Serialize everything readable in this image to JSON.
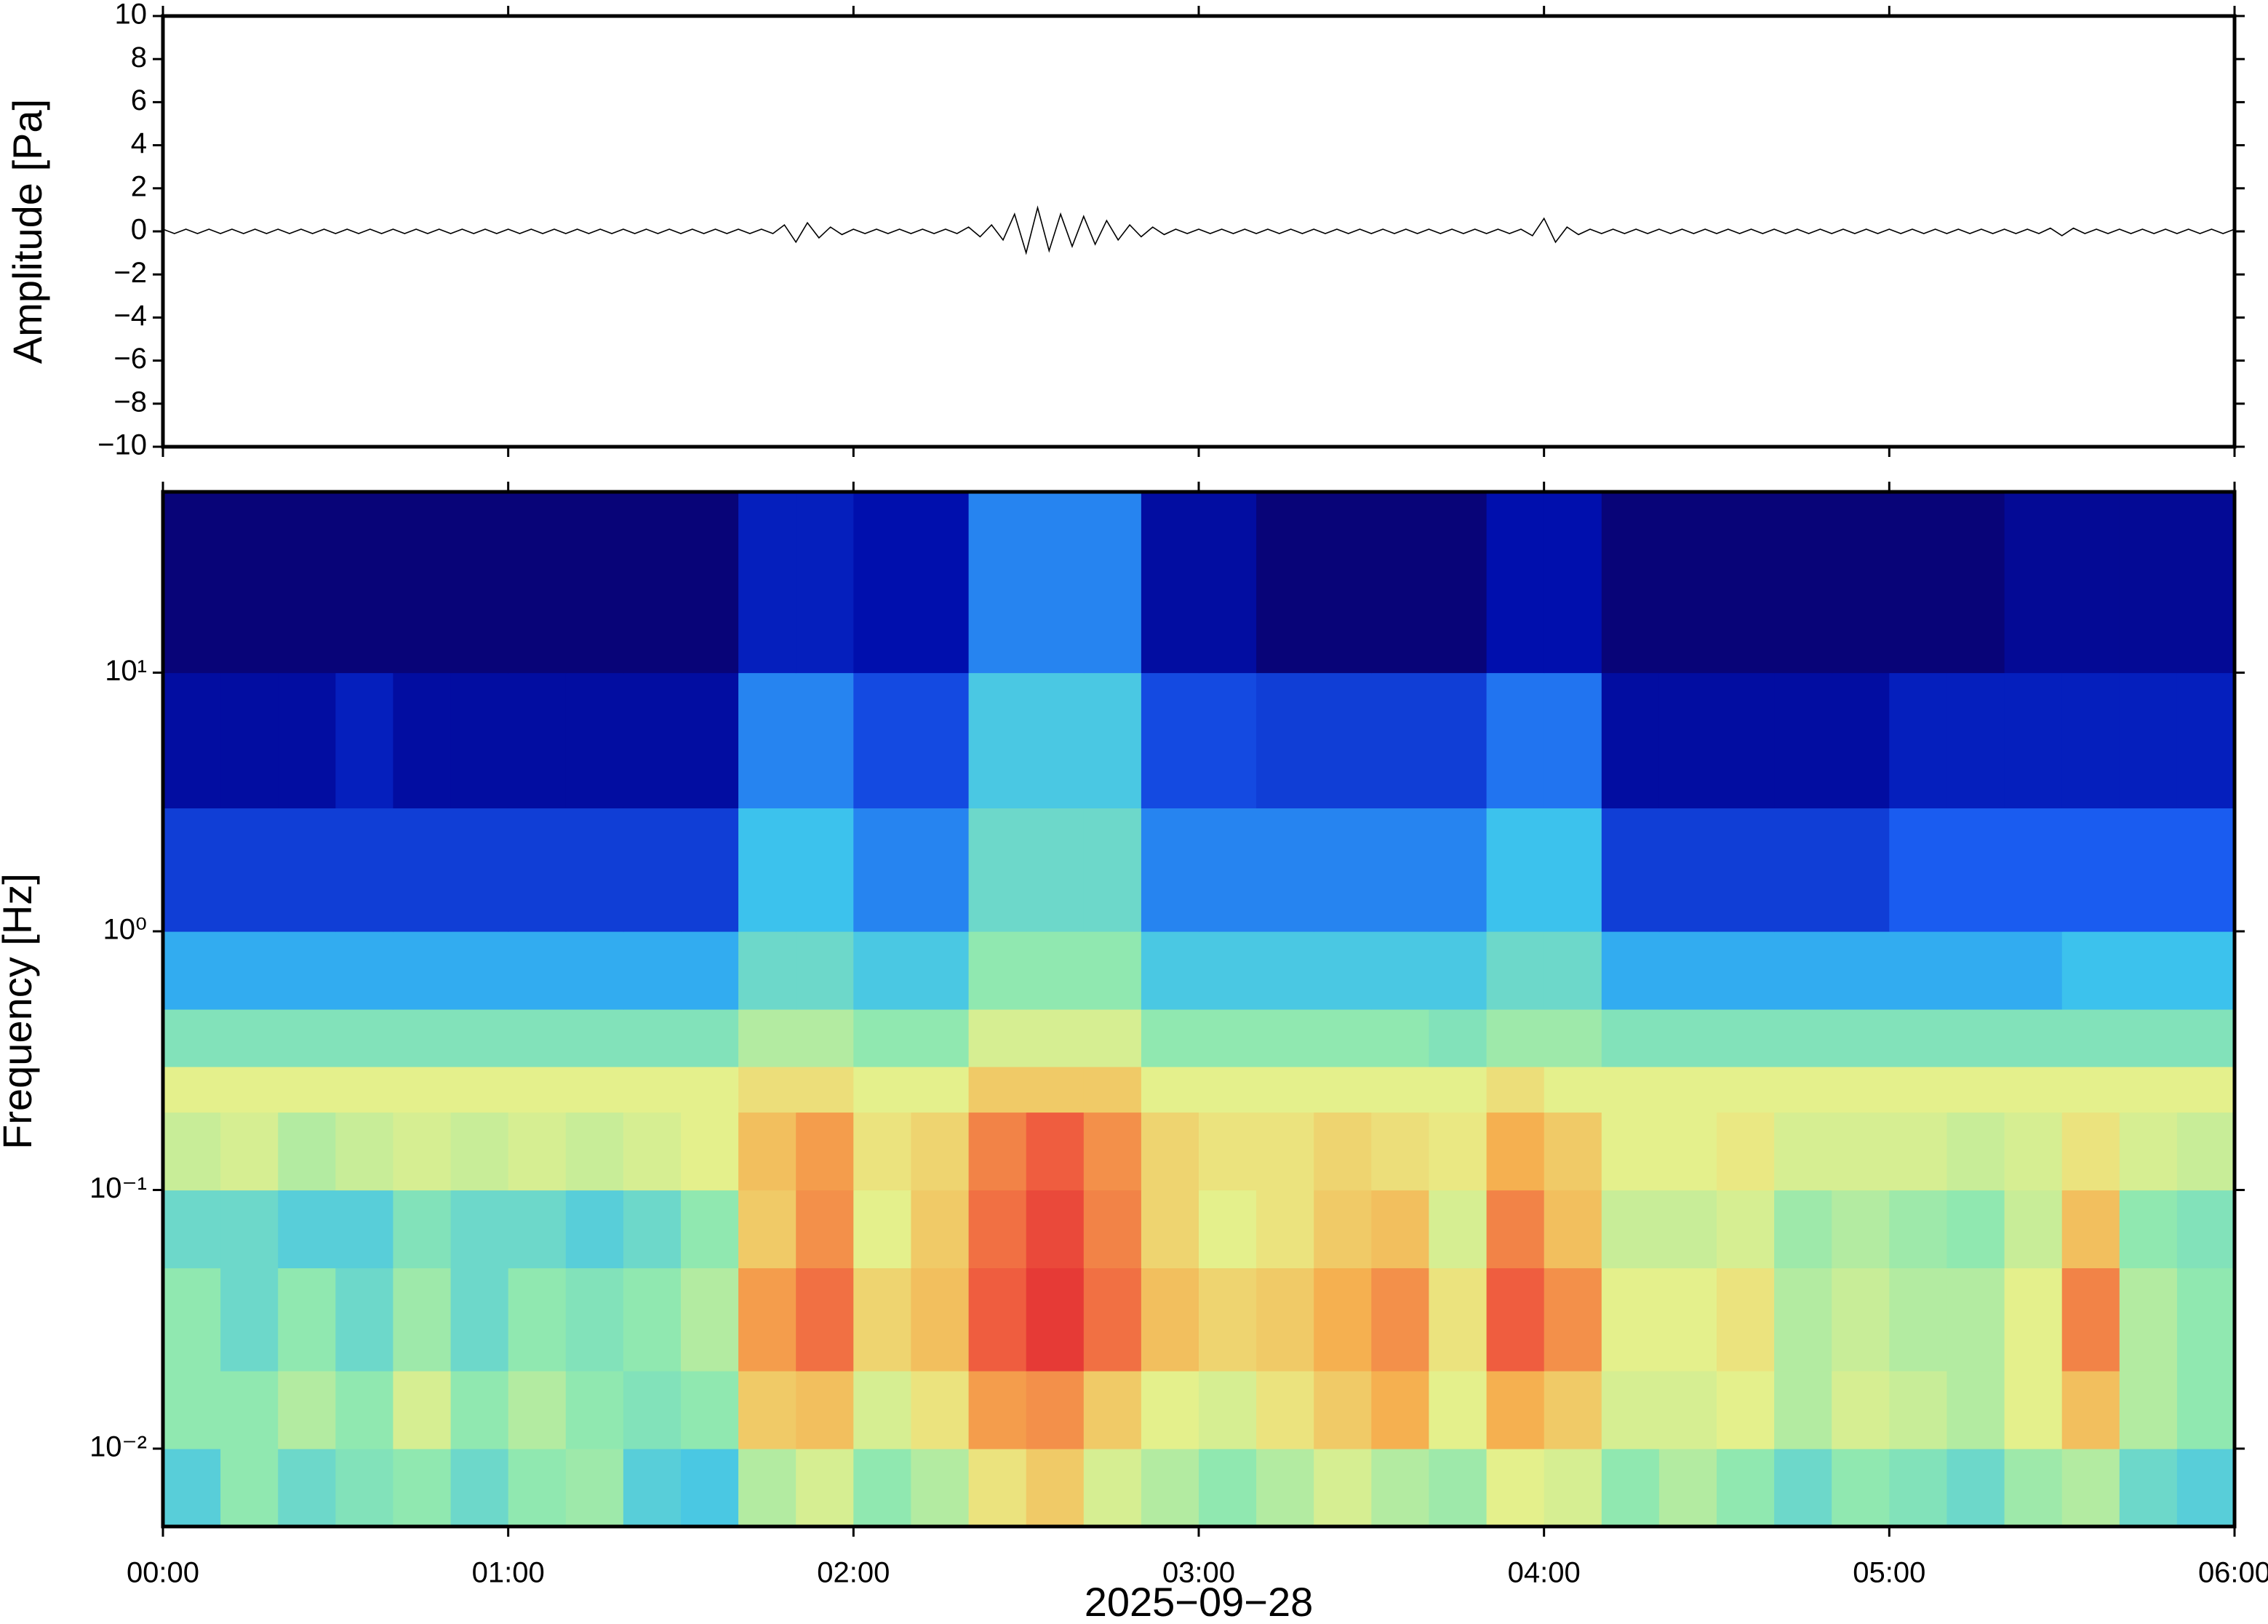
{
  "chart_data": [
    {
      "type": "line",
      "ylabel": "Amplitude [Pa]",
      "color": "#000000",
      "xlim": [
        0,
        360
      ],
      "ylim": [
        -10,
        10
      ],
      "yticks": [
        {
          "value": -10,
          "label": "−10"
        },
        {
          "value": -8,
          "label": "−8"
        },
        {
          "value": -6,
          "label": "−6"
        },
        {
          "value": -4,
          "label": "−4"
        },
        {
          "value": -2,
          "label": "−2"
        },
        0,
        2,
        4,
        6,
        8,
        10
      ],
      "x": [
        0,
        2,
        4,
        6,
        8,
        10,
        12,
        14,
        16,
        18,
        20,
        22,
        24,
        26,
        28,
        30,
        32,
        34,
        36,
        38,
        40,
        42,
        44,
        46,
        48,
        50,
        52,
        54,
        56,
        58,
        60,
        62,
        64,
        66,
        68,
        70,
        72,
        74,
        76,
        78,
        80,
        82,
        84,
        86,
        88,
        90,
        92,
        94,
        96,
        98,
        100,
        102,
        104,
        106,
        108,
        110,
        112,
        114,
        116,
        118,
        120,
        122,
        124,
        126,
        128,
        130,
        132,
        134,
        136,
        138,
        140,
        142,
        144,
        146,
        148,
        150,
        152,
        154,
        156,
        158,
        160,
        162,
        164,
        166,
        168,
        170,
        172,
        174,
        176,
        178,
        180,
        182,
        184,
        186,
        188,
        190,
        192,
        194,
        196,
        198,
        200,
        202,
        204,
        206,
        208,
        210,
        212,
        214,
        216,
        218,
        220,
        222,
        224,
        226,
        228,
        230,
        232,
        234,
        236,
        238,
        240,
        242,
        244,
        246,
        248,
        250,
        252,
        254,
        256,
        258,
        260,
        262,
        264,
        266,
        268,
        270,
        272,
        274,
        276,
        278,
        280,
        282,
        284,
        286,
        288,
        290,
        292,
        294,
        296,
        298,
        300,
        302,
        304,
        306,
        308,
        310,
        312,
        314,
        316,
        318,
        320,
        322,
        324,
        326,
        328,
        330,
        332,
        334,
        336,
        338,
        340,
        342,
        344,
        346,
        348,
        350,
        352,
        354,
        356,
        358,
        360
      ],
      "values": [
        0.1,
        -0.1,
        0.1,
        -0.1,
        0.1,
        -0.1,
        0.1,
        -0.1,
        0.1,
        -0.1,
        0.1,
        -0.1,
        0.1,
        -0.1,
        0.1,
        -0.1,
        0.1,
        -0.1,
        0.1,
        -0.1,
        0.1,
        -0.1,
        0.1,
        -0.1,
        0.1,
        -0.1,
        0.1,
        -0.1,
        0.1,
        -0.1,
        0.1,
        -0.1,
        0.1,
        -0.1,
        0.1,
        -0.1,
        0.1,
        -0.1,
        0.1,
        -0.1,
        0.1,
        -0.1,
        0.1,
        -0.1,
        0.1,
        -0.1,
        0.1,
        -0.1,
        0.1,
        -0.1,
        0.1,
        -0.1,
        0.1,
        -0.1,
        0.3,
        -0.5,
        0.4,
        -0.3,
        0.2,
        -0.15,
        0.1,
        -0.1,
        0.1,
        -0.1,
        0.1,
        -0.1,
        0.1,
        -0.1,
        0.1,
        -0.1,
        0.2,
        -0.25,
        0.3,
        -0.4,
        0.8,
        -1.0,
        1.1,
        -0.9,
        0.8,
        -0.7,
        0.7,
        -0.6,
        0.5,
        -0.4,
        0.3,
        -0.25,
        0.2,
        -0.15,
        0.1,
        -0.1,
        0.1,
        -0.1,
        0.1,
        -0.1,
        0.1,
        -0.1,
        0.1,
        -0.1,
        0.1,
        -0.1,
        0.1,
        -0.1,
        0.1,
        -0.1,
        0.1,
        -0.1,
        0.1,
        -0.1,
        0.1,
        -0.1,
        0.1,
        -0.1,
        0.1,
        -0.1,
        0.1,
        -0.1,
        0.1,
        -0.1,
        0.1,
        -0.2,
        0.6,
        -0.5,
        0.2,
        -0.15,
        0.1,
        -0.1,
        0.1,
        -0.1,
        0.1,
        -0.1,
        0.1,
        -0.1,
        0.1,
        -0.1,
        0.1,
        -0.1,
        0.1,
        -0.1,
        0.1,
        -0.1,
        0.1,
        -0.1,
        0.1,
        -0.1,
        0.1,
        -0.1,
        0.1,
        -0.1,
        0.1,
        -0.1,
        0.1,
        -0.1,
        0.1,
        -0.1,
        0.1,
        -0.1,
        0.1,
        -0.1,
        0.1,
        -0.1,
        0.1,
        -0.1,
        0.1,
        -0.1,
        0.15,
        -0.2,
        0.15,
        -0.1,
        0.1,
        -0.1,
        0.1,
        -0.1,
        0.1,
        -0.1,
        0.1,
        -0.1,
        0.1,
        -0.1,
        0.1,
        -0.1,
        0.1
      ]
    },
    {
      "type": "heatmap",
      "ylabel": "Frequency [Hz]",
      "xlabel": "2025−09−28",
      "log_y": true,
      "xlim": [
        0,
        360
      ],
      "ylim": [
        0.005,
        50
      ],
      "xticks": [
        {
          "value": 0,
          "label": "00:00"
        },
        {
          "value": 60,
          "label": "01:00"
        },
        {
          "value": 120,
          "label": "02:00"
        },
        {
          "value": 180,
          "label": "03:00"
        },
        {
          "value": 240,
          "label": "04:00"
        },
        {
          "value": 300,
          "label": "05:00"
        },
        {
          "value": 360,
          "label": "06:00"
        }
      ],
      "yticks": [
        {
          "value": 0.01,
          "label": "10⁻²"
        },
        {
          "value": 0.1,
          "label": "10⁻¹"
        },
        {
          "value": 1,
          "label": "10⁰"
        },
        {
          "value": 10,
          "label": "10¹"
        }
      ],
      "colormap": [
        "#0a0066",
        "#0010b0",
        "#1a5cf0",
        "#38c0f0",
        "#90e8b0",
        "#e8f08a",
        "#f5b050",
        "#f06040",
        "#e02030"
      ],
      "x": [
        0,
        10,
        20,
        30,
        40,
        50,
        60,
        70,
        80,
        90,
        100,
        110,
        120,
        130,
        140,
        150,
        160,
        170,
        180,
        190,
        200,
        210,
        220,
        230,
        240,
        250,
        260,
        270,
        280,
        290,
        300,
        310,
        320,
        330,
        340,
        350,
        360
      ],
      "y": [
        0.005,
        0.01,
        0.02,
        0.05,
        0.1,
        0.2,
        0.3,
        0.5,
        1,
        3,
        10,
        50
      ],
      "values": [
        [
          0.42,
          0.5,
          0.45,
          0.48,
          0.5,
          0.45,
          0.5,
          0.52,
          0.42,
          0.4,
          0.55,
          0.6,
          0.5,
          0.55,
          0.65,
          0.7,
          0.6,
          0.55,
          0.5,
          0.55,
          0.6,
          0.55,
          0.52,
          0.62,
          0.6,
          0.5,
          0.55,
          0.5,
          0.45,
          0.5,
          0.48,
          0.45,
          0.52,
          0.55,
          0.45,
          0.42
        ],
        [
          0.5,
          0.5,
          0.55,
          0.5,
          0.6,
          0.5,
          0.55,
          0.5,
          0.48,
          0.5,
          0.7,
          0.72,
          0.6,
          0.65,
          0.78,
          0.8,
          0.7,
          0.62,
          0.6,
          0.65,
          0.7,
          0.75,
          0.62,
          0.75,
          0.7,
          0.6,
          0.6,
          0.62,
          0.55,
          0.6,
          0.58,
          0.55,
          0.62,
          0.72,
          0.55,
          0.5
        ],
        [
          0.5,
          0.45,
          0.5,
          0.45,
          0.52,
          0.45,
          0.5,
          0.48,
          0.5,
          0.55,
          0.78,
          0.85,
          0.68,
          0.72,
          0.88,
          0.95,
          0.85,
          0.72,
          0.68,
          0.7,
          0.75,
          0.8,
          0.65,
          0.88,
          0.8,
          0.62,
          0.62,
          0.65,
          0.55,
          0.58,
          0.55,
          0.55,
          0.62,
          0.82,
          0.55,
          0.5
        ],
        [
          0.45,
          0.45,
          0.42,
          0.42,
          0.48,
          0.45,
          0.45,
          0.42,
          0.45,
          0.5,
          0.7,
          0.8,
          0.62,
          0.7,
          0.85,
          0.92,
          0.82,
          0.68,
          0.62,
          0.65,
          0.7,
          0.72,
          0.6,
          0.82,
          0.72,
          0.58,
          0.58,
          0.6,
          0.52,
          0.55,
          0.52,
          0.5,
          0.58,
          0.72,
          0.5,
          0.48
        ],
        [
          0.58,
          0.6,
          0.55,
          0.58,
          0.6,
          0.58,
          0.6,
          0.58,
          0.6,
          0.62,
          0.72,
          0.78,
          0.65,
          0.68,
          0.82,
          0.88,
          0.8,
          0.68,
          0.65,
          0.65,
          0.68,
          0.66,
          0.64,
          0.75,
          0.7,
          0.62,
          0.62,
          0.64,
          0.6,
          0.6,
          0.6,
          0.58,
          0.6,
          0.65,
          0.6,
          0.58
        ],
        [
          0.62,
          0.62,
          0.62,
          0.62,
          0.62,
          0.62,
          0.62,
          0.62,
          0.62,
          0.62,
          0.66,
          0.66,
          0.62,
          0.62,
          0.7,
          0.7,
          0.7,
          0.62,
          0.62,
          0.62,
          0.62,
          0.62,
          0.62,
          0.66,
          0.62,
          0.62,
          0.62,
          0.62,
          0.62,
          0.62,
          0.62,
          0.62,
          0.62,
          0.62,
          0.62,
          0.62
        ],
        [
          0.48,
          0.48,
          0.48,
          0.48,
          0.48,
          0.48,
          0.48,
          0.48,
          0.48,
          0.48,
          0.55,
          0.55,
          0.5,
          0.5,
          0.6,
          0.6,
          0.6,
          0.5,
          0.5,
          0.5,
          0.5,
          0.5,
          0.48,
          0.52,
          0.52,
          0.48,
          0.48,
          0.48,
          0.48,
          0.48,
          0.48,
          0.48,
          0.48,
          0.48,
          0.48,
          0.48
        ],
        [
          0.35,
          0.35,
          0.35,
          0.35,
          0.35,
          0.35,
          0.35,
          0.35,
          0.35,
          0.35,
          0.45,
          0.45,
          0.4,
          0.4,
          0.5,
          0.5,
          0.5,
          0.4,
          0.4,
          0.4,
          0.4,
          0.4,
          0.4,
          0.45,
          0.45,
          0.35,
          0.35,
          0.35,
          0.35,
          0.35,
          0.35,
          0.35,
          0.35,
          0.38,
          0.38,
          0.38
        ],
        [
          0.2,
          0.2,
          0.2,
          0.2,
          0.2,
          0.2,
          0.2,
          0.2,
          0.2,
          0.2,
          0.38,
          0.38,
          0.3,
          0.3,
          0.45,
          0.45,
          0.45,
          0.3,
          0.3,
          0.3,
          0.3,
          0.3,
          0.3,
          0.38,
          0.38,
          0.2,
          0.2,
          0.2,
          0.2,
          0.2,
          0.25,
          0.25,
          0.25,
          0.25,
          0.25,
          0.25
        ],
        [
          0.1,
          0.1,
          0.1,
          0.15,
          0.1,
          0.1,
          0.1,
          0.1,
          0.1,
          0.1,
          0.3,
          0.3,
          0.22,
          0.22,
          0.4,
          0.4,
          0.4,
          0.22,
          0.22,
          0.2,
          0.2,
          0.2,
          0.2,
          0.28,
          0.28,
          0.1,
          0.1,
          0.1,
          0.1,
          0.1,
          0.15,
          0.15,
          0.15,
          0.15,
          0.15,
          0.15
        ],
        [
          0.03,
          0.03,
          0.03,
          0.03,
          0.03,
          0.03,
          0.03,
          0.03,
          0.03,
          0.03,
          0.15,
          0.15,
          0.12,
          0.12,
          0.3,
          0.3,
          0.3,
          0.1,
          0.1,
          0.03,
          0.03,
          0.03,
          0.03,
          0.12,
          0.12,
          0.03,
          0.03,
          0.03,
          0.03,
          0.03,
          0.03,
          0.03,
          0.08,
          0.08,
          0.08,
          0.08
        ]
      ]
    }
  ]
}
